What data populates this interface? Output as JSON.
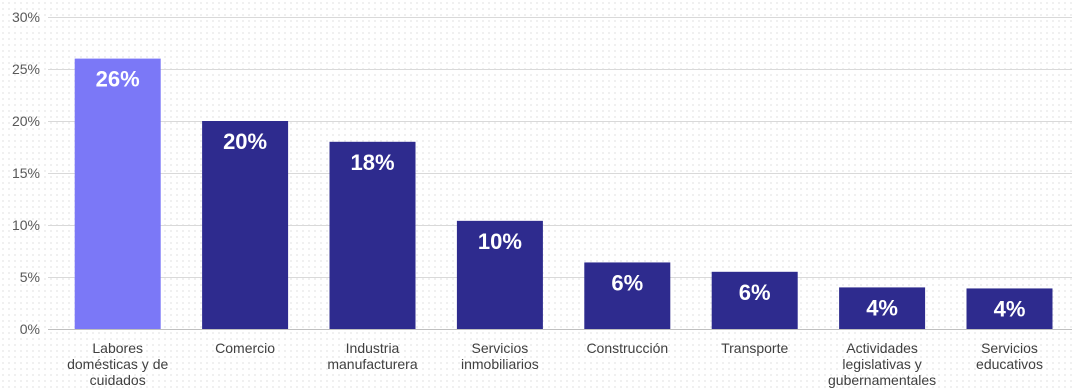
{
  "chart_data": {
    "type": "bar",
    "categories": [
      [
        "Labores",
        "domésticas y de",
        "cuidados"
      ],
      [
        "Comercio"
      ],
      [
        "Industria",
        "manufacturera"
      ],
      [
        "Servicios",
        "inmobiliarios"
      ],
      [
        "Construcción"
      ],
      [
        "Transporte"
      ],
      [
        "Actividades",
        "legislativas y",
        "gubernamentales"
      ],
      [
        "Servicios",
        "educativos"
      ]
    ],
    "values": [
      26,
      20,
      18,
      10.4,
      6.4,
      5.5,
      4,
      3.9
    ],
    "data_labels": [
      "26%",
      "20%",
      "18%",
      "10%",
      "6%",
      "6%",
      "4%",
      "4%"
    ],
    "y_ticks": [
      0,
      5,
      10,
      15,
      20,
      25,
      30
    ],
    "y_tick_labels": [
      "0%",
      "5%",
      "10%",
      "15%",
      "20%",
      "25%",
      "30%"
    ],
    "ylim": [
      0,
      30
    ],
    "grid": true,
    "colors": {
      "highlight": "#7b78f7",
      "bar": "#2e2b8e"
    },
    "highlight_index": 0
  }
}
